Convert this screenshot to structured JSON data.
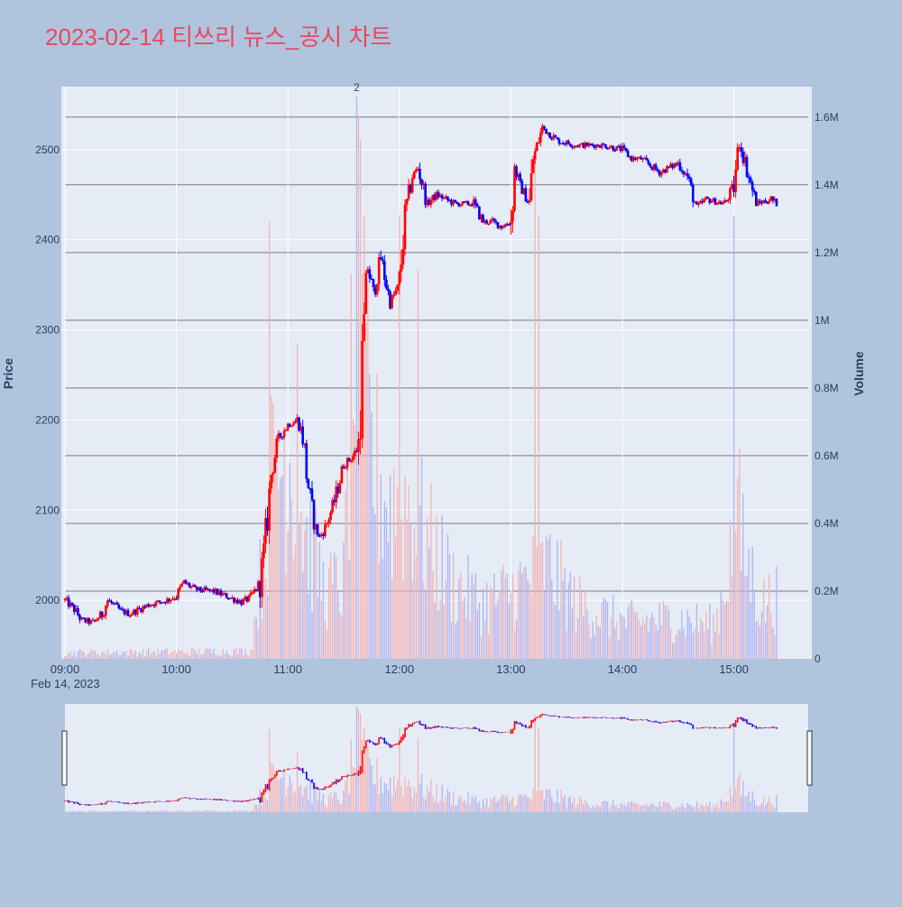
{
  "colors": {
    "background": "#b0c4de",
    "plot_bg": "#e5ecf6",
    "title": "#e8495f",
    "up": "#ff0000",
    "down": "#0000ff",
    "volume_up": "#f4b4b4",
    "volume_down": "#b0b4f4",
    "tick_text": "#2a3f5f",
    "volume_grid": "#7a7a7a"
  },
  "chart_data": {
    "type": "candlestick",
    "title": "2023-02-14 티쓰리 뉴스_공시 차트",
    "date_label": "Feb 14, 2023",
    "y_axis": {
      "label": "Price",
      "range": [
        1935,
        2570
      ],
      "ticks": [
        2000,
        2100,
        2200,
        2300,
        2400,
        2500
      ]
    },
    "volume_axis": {
      "label": "Volume",
      "range": [
        0,
        1690000
      ],
      "ticks": [
        0,
        200000,
        400000,
        600000,
        800000,
        1000000,
        1200000,
        1400000,
        1600000
      ],
      "tick_labels": [
        "0",
        "0.2M",
        "0.4M",
        "0.6M",
        "0.8M",
        "1M",
        "1.2M",
        "1.4M",
        "1.6M"
      ]
    },
    "x_axis": {
      "range": [
        "09:00",
        "15:40"
      ],
      "ticks": [
        "09:00",
        "10:00",
        "11:00",
        "12:00",
        "13:00",
        "14:00",
        "15:00"
      ]
    },
    "annotation": {
      "time": "11:37",
      "text": "2"
    },
    "price_anchors": [
      [
        "09:00",
        2000
      ],
      [
        "09:05",
        1990
      ],
      [
        "09:09",
        1978
      ],
      [
        "09:15",
        1975
      ],
      [
        "09:20",
        1985
      ],
      [
        "09:23",
        2000
      ],
      [
        "09:30",
        1988
      ],
      [
        "09:35",
        1985
      ],
      [
        "09:45",
        1995
      ],
      [
        "09:55",
        2000
      ],
      [
        "10:00",
        2005
      ],
      [
        "10:04",
        2020
      ],
      [
        "10:10",
        2012
      ],
      [
        "10:20",
        2010
      ],
      [
        "10:30",
        2002
      ],
      [
        "10:35",
        1998
      ],
      [
        "10:40",
        2003
      ],
      [
        "10:45",
        2020
      ],
      [
        "10:48",
        2070
      ],
      [
        "10:51",
        2140
      ],
      [
        "10:55",
        2180
      ],
      [
        "11:00",
        2195
      ],
      [
        "11:05",
        2200
      ],
      [
        "11:08",
        2185
      ],
      [
        "11:10",
        2140
      ],
      [
        "11:14",
        2085
      ],
      [
        "11:17",
        2070
      ],
      [
        "11:20",
        2080
      ],
      [
        "11:25",
        2110
      ],
      [
        "11:30",
        2150
      ],
      [
        "11:35",
        2160
      ],
      [
        "11:38",
        2170
      ],
      [
        "11:40",
        2270
      ],
      [
        "11:43",
        2370
      ],
      [
        "11:46",
        2340
      ],
      [
        "11:50",
        2380
      ],
      [
        "11:55",
        2330
      ],
      [
        "12:00",
        2350
      ],
      [
        "12:03",
        2430
      ],
      [
        "12:07",
        2470
      ],
      [
        "12:10",
        2480
      ],
      [
        "12:15",
        2440
      ],
      [
        "12:20",
        2450
      ],
      [
        "12:30",
        2440
      ],
      [
        "12:40",
        2440
      ],
      [
        "12:45",
        2420
      ],
      [
        "12:50",
        2420
      ],
      [
        "12:55",
        2415
      ],
      [
        "13:00",
        2420
      ],
      [
        "13:02",
        2480
      ],
      [
        "13:05",
        2460
      ],
      [
        "13:10",
        2440
      ],
      [
        "13:12",
        2490
      ],
      [
        "13:17",
        2525
      ],
      [
        "13:25",
        2510
      ],
      [
        "13:35",
        2505
      ],
      [
        "13:50",
        2505
      ],
      [
        "14:00",
        2500
      ],
      [
        "14:05",
        2490
      ],
      [
        "14:10",
        2490
      ],
      [
        "14:20",
        2475
      ],
      [
        "14:30",
        2485
      ],
      [
        "14:35",
        2470
      ],
      [
        "14:40",
        2435
      ],
      [
        "14:45",
        2445
      ],
      [
        "14:55",
        2440
      ],
      [
        "15:00",
        2460
      ],
      [
        "15:03",
        2510
      ],
      [
        "15:08",
        2470
      ],
      [
        "15:12",
        2440
      ],
      [
        "15:20",
        2445
      ],
      [
        "15:23",
        2440
      ]
    ],
    "volume_anchors": [
      [
        "09:00",
        20000
      ],
      [
        "10:40",
        25000
      ],
      [
        "10:46",
        300000
      ],
      [
        "10:50",
        550000
      ],
      [
        "11:00",
        700000
      ],
      [
        "11:10",
        400000
      ],
      [
        "11:20",
        220000
      ],
      [
        "11:30",
        250000
      ],
      [
        "11:37",
        1200000
      ],
      [
        "11:45",
        650000
      ],
      [
        "11:55",
        500000
      ],
      [
        "12:05",
        520000
      ],
      [
        "12:15",
        380000
      ],
      [
        "12:30",
        240000
      ],
      [
        "12:45",
        180000
      ],
      [
        "13:00",
        220000
      ],
      [
        "13:10",
        260000
      ],
      [
        "13:20",
        300000
      ],
      [
        "13:35",
        180000
      ],
      [
        "14:00",
        120000
      ],
      [
        "14:30",
        130000
      ],
      [
        "14:50",
        110000
      ],
      [
        "15:00",
        400000
      ],
      [
        "15:05",
        350000
      ],
      [
        "15:15",
        180000
      ],
      [
        "15:23",
        200000
      ]
    ],
    "volume_spikes": [
      [
        "10:50",
        1290000
      ],
      [
        "11:05",
        930000
      ],
      [
        "11:37",
        1660000
      ],
      [
        "11:38",
        1600000
      ],
      [
        "11:40",
        1140000
      ],
      [
        "12:00",
        1310000
      ],
      [
        "12:10",
        1150000
      ],
      [
        "13:15",
        1310000
      ],
      [
        "13:13",
        1520000
      ],
      [
        "15:00",
        1310000
      ],
      [
        "15:03",
        620000
      ]
    ]
  }
}
